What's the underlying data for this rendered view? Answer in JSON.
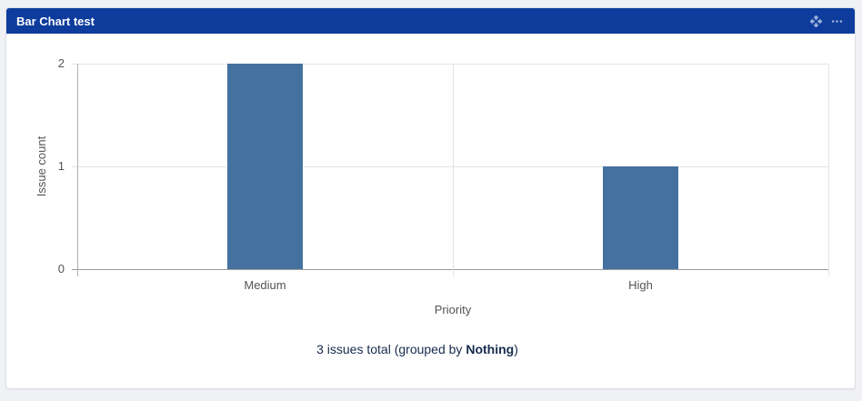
{
  "page": {
    "background_color": "#f0f1f4"
  },
  "gadget": {
    "header": {
      "title": "Bar Chart test",
      "bg_color": "#0d3c9d",
      "icons": [
        {
          "name": "move-icon"
        },
        {
          "name": "more-options-icon"
        }
      ]
    },
    "summary": {
      "prefix": "3 issues total (grouped by ",
      "bold": "Nothing",
      "suffix": ")"
    }
  },
  "chart_data": {
    "type": "bar",
    "title": "Bar Chart test",
    "categories": [
      "Medium",
      "High"
    ],
    "values": [
      2,
      1
    ],
    "xlabel": "Priority",
    "ylabel": "Issue count",
    "ylim": [
      0,
      2
    ],
    "yticks": [
      0,
      1,
      2
    ],
    "grid": true,
    "legend": false,
    "bar_color": "#44719F",
    "gridline_color": "#e4e4e4",
    "axis_line_color": "#9b9b9b"
  }
}
